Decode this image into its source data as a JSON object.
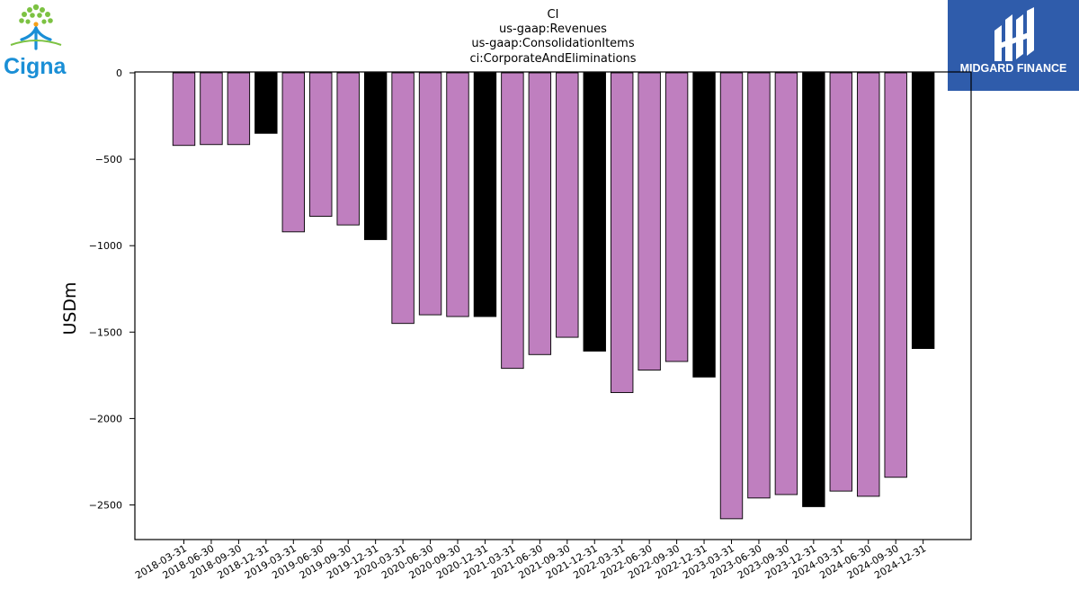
{
  "brand": {
    "left_logo_text": "Cigna",
    "right_logo_text": "MIDGARD FINANCE",
    "right_logo_bg": "#2f5cab"
  },
  "chart_data": {
    "type": "bar",
    "title_lines": [
      "CI",
      "us-gaap:Revenues",
      "us-gaap:ConsolidationItems",
      "ci:CorporateAndEliminations"
    ],
    "xlabel": "",
    "ylabel": "USDm",
    "ylim": [
      -2600,
      0
    ],
    "yticks": [
      0,
      -500,
      -1000,
      -1500,
      -2000,
      -2500
    ],
    "ytick_labels": [
      "0",
      "−500",
      "−1000",
      "−1500",
      "−2000",
      "−2500"
    ],
    "grid": false,
    "colors": {
      "quarter": "#bf7fbf",
      "year_end": "#000000",
      "edge": "#000000"
    },
    "categories": [
      "2018-03-31",
      "2018-06-30",
      "2018-09-30",
      "2018-12-31",
      "2019-03-31",
      "2019-06-30",
      "2019-09-30",
      "2019-12-31",
      "2020-03-31",
      "2020-06-30",
      "2020-09-30",
      "2020-12-31",
      "2021-03-31",
      "2021-06-30",
      "2021-09-30",
      "2021-12-31",
      "2022-03-31",
      "2022-06-30",
      "2022-09-30",
      "2022-12-31",
      "2023-03-31",
      "2023-06-30",
      "2023-09-30",
      "2023-12-31",
      "2024-03-31",
      "2024-06-30",
      "2024-09-30",
      "2024-12-31"
    ],
    "values": [
      -420,
      -415,
      -415,
      -350,
      -920,
      -830,
      -880,
      -965,
      -1450,
      -1400,
      -1410,
      -1410,
      -1710,
      -1630,
      -1530,
      -1610,
      -1850,
      -1720,
      -1670,
      -1760,
      -2580,
      -2460,
      -2440,
      -2510,
      -2420,
      -2450,
      -2340,
      -1595
    ],
    "year_end_flags": [
      false,
      false,
      false,
      true,
      false,
      false,
      false,
      true,
      false,
      false,
      false,
      true,
      false,
      false,
      false,
      true,
      false,
      false,
      false,
      true,
      false,
      false,
      false,
      true,
      false,
      false,
      false,
      true
    ]
  }
}
